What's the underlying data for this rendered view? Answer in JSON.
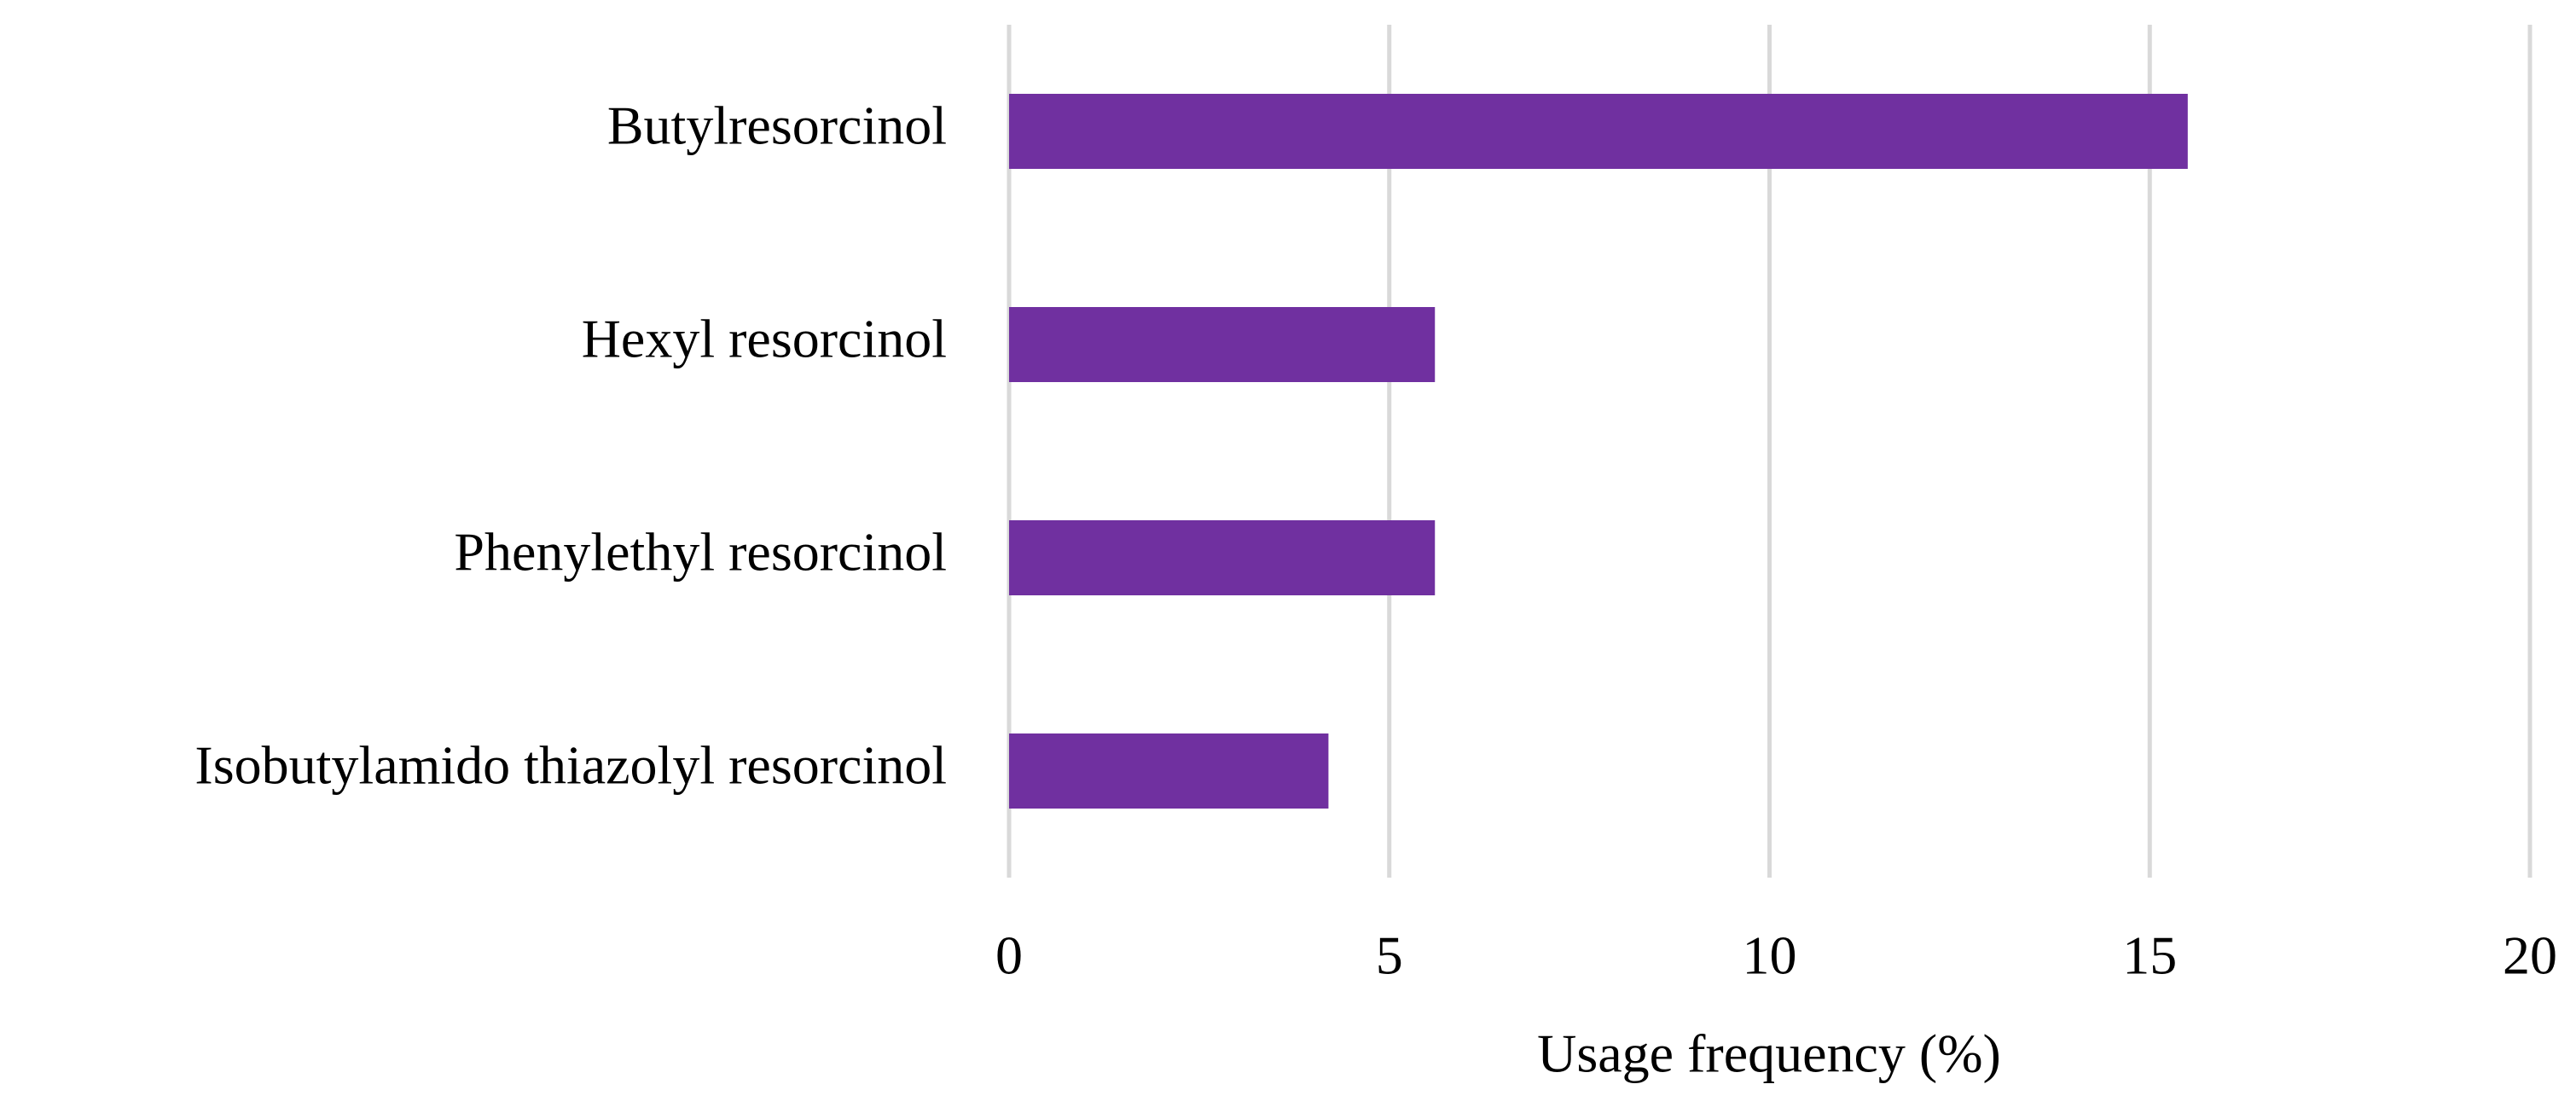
{
  "chart_data": {
    "type": "bar",
    "orientation": "horizontal",
    "categories": [
      "Butylresorcinol",
      "Hexyl resorcinol",
      "Phenylethyl resorcinol",
      "Isobutylamido thiazolyl resorcinol"
    ],
    "values": [
      15.5,
      5.6,
      5.6,
      4.2
    ],
    "color": "#7030a0",
    "x_label": "Usage frequency (%)",
    "xlim": [
      0,
      20
    ],
    "xticks": [
      0,
      5,
      10,
      15,
      20
    ],
    "grid": true
  }
}
